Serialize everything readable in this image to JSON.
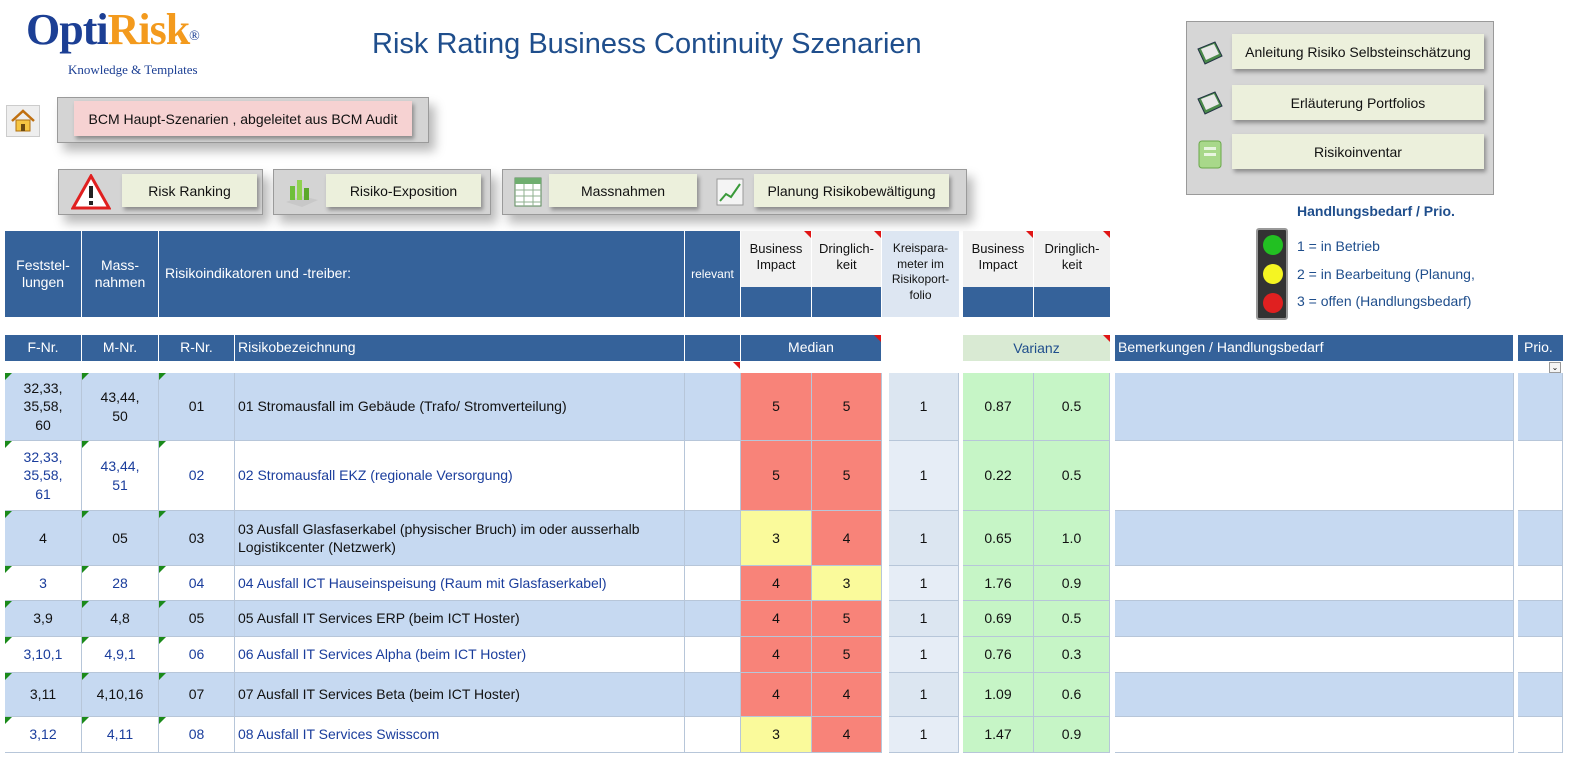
{
  "logo": {
    "opti": "Opti",
    "risk": "Risk",
    "reg": "®",
    "tagline": "Knowledge & Templates"
  },
  "title": "Risk Rating Business Continuity Szenarien",
  "buttons": {
    "bcm": "BCM Haupt-Szenarien , abgeleitet aus BCM Audit",
    "risk_ranking": "Risk Ranking",
    "risiko_exposition": "Risiko-Exposition",
    "massnahmen": "Massnahmen",
    "planung": "Planung Risikobewältigung",
    "anleitung": "Anleitung Risiko Selbsteinschätzung",
    "erlaeuterung": "Erläuterung Portfolios",
    "risikoinventar": "Risikoinventar"
  },
  "legend": {
    "title": "Handlungsbedarf / Prio.",
    "items": [
      "1 = in Betrieb",
      "2 = in Bearbeitung (Planung,",
      "3 = offen (Handlungsbedarf)"
    ]
  },
  "header_top": {
    "feststellungen": "Feststel-\nlungen",
    "massnahmen": "Mass-\nnahmen",
    "risikoindikatoren": "Risikoindikatoren und -treiber:",
    "relevant": "relevant",
    "business_impact": "Business\nImpact",
    "dringlichkeit": "Dringlich-\nkeit",
    "kreisparameter": "Kreispara-\nmeter im\nRisikoport-\nfolio",
    "business_impact2": "Business\nImpact",
    "dringlichkeit2": "Dringlich-\nkeit"
  },
  "header_row": {
    "f_nr": "F-Nr.",
    "m_nr": "M-Nr.",
    "r_nr": "R-Nr.",
    "risikobezeichnung": "Risikobezeichnung",
    "median": "Median",
    "varianz": "Varianz",
    "bemerkungen": "Bemerkungen / Handlungsbedarf",
    "prio": "Prio."
  },
  "colors": {
    "red": "#f88379",
    "yellow": "#fafa9b",
    "green": "#c6f5c6",
    "rowblue": "#c6d9f1",
    "header": "#35629a"
  },
  "rows": [
    {
      "f": "32,33,\n35,58,\n60",
      "m": "43,44,\n50",
      "r": "01",
      "name": "01  Stromausfall im Gebäude (Trafo/ Stromverteilung)",
      "bi": "5",
      "dr": "5",
      "kp": "1",
      "v1": "0.87",
      "v2": "0.5",
      "bi_c": "red",
      "dr_c": "red",
      "shade": true,
      "blue": false
    },
    {
      "f": "32,33,\n35,58,\n61",
      "m": "43,44,\n51",
      "r": "02",
      "name": "02  Stromausfall EKZ (regionale Versorgung)",
      "bi": "5",
      "dr": "5",
      "kp": "1",
      "v1": "0.22",
      "v2": "0.5",
      "bi_c": "red",
      "dr_c": "red",
      "shade": false,
      "blue": true
    },
    {
      "f": "4",
      "m": "05",
      "r": "03",
      "name": "03  Ausfall Glasfaserkabel (physischer Bruch) im oder ausserhalb Logistikcenter (Netzwerk)",
      "bi": "3",
      "dr": "4",
      "kp": "1",
      "v1": "0.65",
      "v2": "1.0",
      "bi_c": "yellow",
      "dr_c": "red",
      "shade": true,
      "blue": false
    },
    {
      "f": "3",
      "m": "28",
      "r": "04",
      "name": "04  Ausfall ICT Hauseinspeisung (Raum mit Glasfaserkabel)",
      "bi": "4",
      "dr": "3",
      "kp": "1",
      "v1": "1.76",
      "v2": "0.9",
      "bi_c": "red",
      "dr_c": "yellow",
      "shade": false,
      "blue": true
    },
    {
      "f": "3,9",
      "m": "4,8",
      "r": "05",
      "name": "05  Ausfall IT Services ERP (beim ICT Hoster)",
      "bi": "4",
      "dr": "5",
      "kp": "1",
      "v1": "0.69",
      "v2": "0.5",
      "bi_c": "red",
      "dr_c": "red",
      "shade": true,
      "blue": false
    },
    {
      "f": "3,10,1",
      "m": "4,9,1",
      "r": "06",
      "name": "06  Ausfall IT Services Alpha (beim ICT Hoster)",
      "bi": "4",
      "dr": "5",
      "kp": "1",
      "v1": "0.76",
      "v2": "0.3",
      "bi_c": "red",
      "dr_c": "red",
      "shade": false,
      "blue": true
    },
    {
      "f": "3,11",
      "m": "4,10,16",
      "r": "07",
      "name": "07  Ausfall IT Services Beta (beim ICT Hoster)",
      "bi": "4",
      "dr": "4",
      "kp": "1",
      "v1": "1.09",
      "v2": "0.6",
      "bi_c": "red",
      "dr_c": "red",
      "shade": true,
      "blue": false
    },
    {
      "f": "3,12",
      "m": "4,11",
      "r": "08",
      "name": "08  Ausfall IT Services Swisscom",
      "bi": "3",
      "dr": "4",
      "kp": "1",
      "v1": "1.47",
      "v2": "0.9",
      "bi_c": "yellow",
      "dr_c": "red",
      "shade": false,
      "blue": true
    }
  ]
}
